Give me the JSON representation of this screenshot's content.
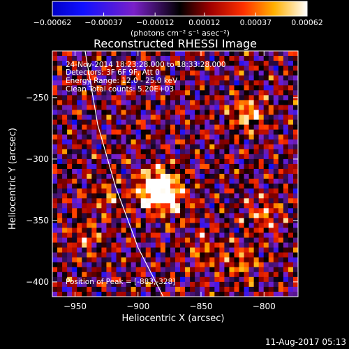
{
  "chart_data": {
    "type": "heatmap",
    "title": "Reconstructed RHESSI Image",
    "xlabel": "Heliocentric X (arcsec)",
    "ylabel": "Heliocentric Y (arcsec)",
    "xlim": [
      -968,
      -773
    ],
    "ylim": [
      -412,
      -212
    ],
    "x_ticks": [
      -950,
      -900,
      -850,
      -800
    ],
    "y_ticks": [
      -250,
      -300,
      -350,
      -400
    ],
    "x_tick_labels": [
      "−950",
      "−900",
      "−850",
      "−800"
    ],
    "y_tick_labels": [
      "−250",
      "−300",
      "−350",
      "−400"
    ],
    "colorbar": {
      "ticks": [
        -0.00062,
        -0.00037,
        -0.00012,
        0.00012,
        0.00037,
        0.00062
      ],
      "tick_labels": [
        "−0.00062",
        "−0.00037",
        "−0.00012",
        "0.00012",
        "0.00037",
        "0.00062"
      ],
      "unit_label": "(photons cm⁻² s⁻¹ asec⁻²)"
    },
    "peak": {
      "x": -883,
      "y": -328
    },
    "sources": [
      {
        "x": -881,
        "y": -320,
        "strength": 1.0
      },
      {
        "x": -889,
        "y": -328,
        "strength": 0.9
      },
      {
        "x": -871,
        "y": -336,
        "strength": 0.55
      },
      {
        "x": -813,
        "y": -263,
        "strength": 0.75
      },
      {
        "x": -800,
        "y": -345,
        "strength": 0.55
      },
      {
        "x": -818,
        "y": -384,
        "strength": 0.5
      },
      {
        "x": -941,
        "y": -364,
        "strength": 0.45
      },
      {
        "x": -925,
        "y": -331,
        "strength": 0.4
      },
      {
        "x": -848,
        "y": -375,
        "strength": 0.4
      }
    ],
    "limb_curve": [
      {
        "x": -942,
        "y": -212
      },
      {
        "x": -932,
        "y": -272
      },
      {
        "x": -918,
        "y": -322
      },
      {
        "x": -900,
        "y": -372
      },
      {
        "x": -880,
        "y": -412
      }
    ],
    "annotations": [
      "24-Nov-2014 18:23:28.000 to 18:33:28.000",
      "Detectors: 3F 6F 9F, Att 0",
      "Energy Range: 12.0 - 25.0 keV",
      "Clean    Total counts: 5.20E+03"
    ],
    "peak_label": "Position of Peak = [-883,-328]"
  },
  "footer": {
    "date": "11-Aug-2017 05:13"
  }
}
